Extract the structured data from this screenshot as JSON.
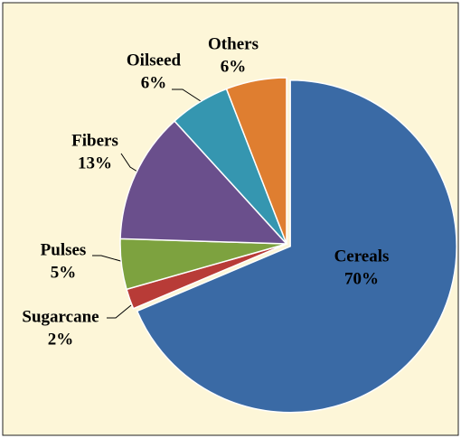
{
  "chart_data": {
    "type": "pie",
    "categories": [
      "Cereals",
      "Sugarcane",
      "Pulses",
      "Fibers",
      "Oilseed",
      "Others"
    ],
    "values": [
      70,
      2,
      5,
      13,
      6,
      6
    ],
    "value_labels": [
      "70%",
      "2%",
      "5%",
      "13%",
      "6%",
      "6%"
    ],
    "colors": [
      "#3a6aa5",
      "#b83b37",
      "#7da23f",
      "#6a4f8c",
      "#3596b0",
      "#df7e30"
    ],
    "explode": [
      "Cereals"
    ]
  }
}
